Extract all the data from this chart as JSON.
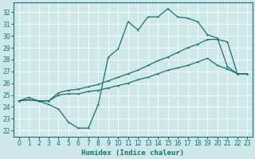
{
  "title": "",
  "xlabel": "Humidex (Indice chaleur)",
  "xlim": [
    -0.5,
    23.5
  ],
  "ylim": [
    21.5,
    32.8
  ],
  "yticks": [
    22,
    23,
    24,
    25,
    26,
    27,
    28,
    29,
    30,
    31,
    32
  ],
  "xticks": [
    0,
    1,
    2,
    3,
    4,
    5,
    6,
    7,
    8,
    9,
    10,
    11,
    12,
    13,
    14,
    15,
    16,
    17,
    18,
    19,
    20,
    21,
    22,
    23
  ],
  "bg_color": "#cde8e8",
  "line_color": "#1a7070",
  "grid_color": "#ffffff",
  "line1_y": [
    24.5,
    24.8,
    24.5,
    24.2,
    23.8,
    22.7,
    22.2,
    22.2,
    24.2,
    28.2,
    28.9,
    31.2,
    30.5,
    31.6,
    31.6,
    32.3,
    31.6,
    31.5,
    31.2,
    30.1,
    29.8,
    27.4,
    26.8,
    26.8
  ],
  "line2_y": [
    24.5,
    24.6,
    24.5,
    24.5,
    25.0,
    25.1,
    25.1,
    25.3,
    25.4,
    25.6,
    25.8,
    26.0,
    26.3,
    26.5,
    26.8,
    27.1,
    27.3,
    27.5,
    27.8,
    28.1,
    27.5,
    27.2,
    26.8,
    26.8
  ],
  "line3_y": [
    24.5,
    24.6,
    24.5,
    24.5,
    25.2,
    25.4,
    25.5,
    25.7,
    25.9,
    26.2,
    26.5,
    26.8,
    27.1,
    27.5,
    27.9,
    28.2,
    28.6,
    29.0,
    29.3,
    29.7,
    29.7,
    29.5,
    26.8,
    26.8
  ]
}
